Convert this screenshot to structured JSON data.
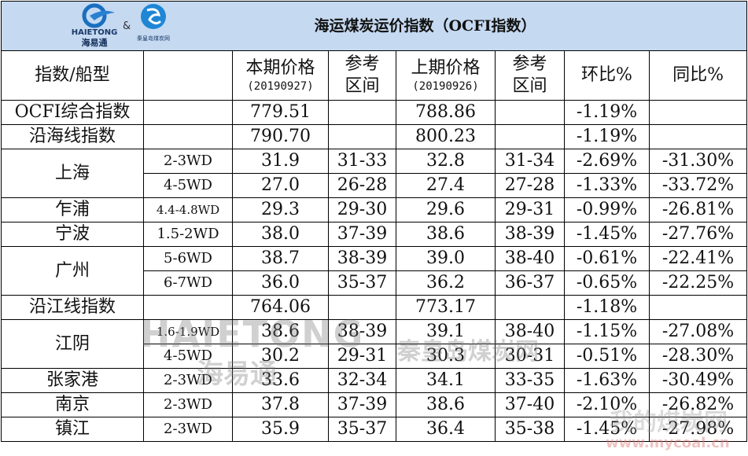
{
  "logos": {
    "left": "HAIETONG",
    "left_sub": "海易通",
    "amp": "&",
    "right_sub": "秦皇岛煤炭网"
  },
  "title": "海运煤炭运价指数（OCFI指数）",
  "headers": {
    "index": "指数/船型",
    "cur": "本期价格",
    "cur_date": "(20190927)",
    "ref1": "参考区间",
    "prev": "上期价格",
    "prev_date": "(20190926)",
    "ref2": "参考区间",
    "mom": "环比%",
    "yoy": "同比%"
  },
  "rows": [
    {
      "name": "OCFI综合指数",
      "ship": "",
      "cur": "779.51",
      "ref1": "",
      "prev": "788.86",
      "ref2": "",
      "mom": "-1.19%",
      "yoy": ""
    },
    {
      "name": "沿海线指数",
      "ship": "",
      "cur": "790.70",
      "ref1": "",
      "prev": "800.23",
      "ref2": "",
      "mom": "-1.19%",
      "yoy": ""
    },
    {
      "name": "上海",
      "ship": "2-3WD",
      "cur": "31.9",
      "ref1": "31-33",
      "prev": "32.8",
      "ref2": "31-34",
      "mom": "-2.69%",
      "yoy": "-31.30%"
    },
    {
      "name": "",
      "ship": "4-5WD",
      "cur": "27.0",
      "ref1": "26-28",
      "prev": "27.4",
      "ref2": "27-28",
      "mom": "-1.33%",
      "yoy": "-33.72%"
    },
    {
      "name": "乍浦",
      "ship": "4.4-4.8WD",
      "cur": "29.3",
      "ref1": "29-30",
      "prev": "29.6",
      "ref2": "29-31",
      "mom": "-0.99%",
      "yoy": "-26.81%"
    },
    {
      "name": "宁波",
      "ship": "1.5-2WD",
      "cur": "38.0",
      "ref1": "37-39",
      "prev": "38.6",
      "ref2": "38-39",
      "mom": "-1.45%",
      "yoy": "-27.76%"
    },
    {
      "name": "广州",
      "ship": "5-6WD",
      "cur": "38.7",
      "ref1": "38-39",
      "prev": "39.0",
      "ref2": "38-40",
      "mom": "-0.61%",
      "yoy": "-22.41%"
    },
    {
      "name": "",
      "ship": "6-7WD",
      "cur": "36.0",
      "ref1": "35-37",
      "prev": "36.2",
      "ref2": "36-37",
      "mom": "-0.65%",
      "yoy": "-22.25%"
    },
    {
      "name": "沿江线指数",
      "ship": "",
      "cur": "764.06",
      "ref1": "",
      "prev": "773.17",
      "ref2": "",
      "mom": "-1.18%",
      "yoy": ""
    },
    {
      "name": "江阴",
      "ship": "1.6-1.9WD",
      "cur": "38.6",
      "ref1": "38-39",
      "prev": "39.1",
      "ref2": "38-40",
      "mom": "-1.15%",
      "yoy": "-27.08%"
    },
    {
      "name": "",
      "ship": "4-5WD",
      "cur": "30.2",
      "ref1": "29-31",
      "prev": "30.3",
      "ref2": "30-31",
      "mom": "-0.51%",
      "yoy": "-28.30%"
    },
    {
      "name": "张家港",
      "ship": "2-3WD",
      "cur": "33.6",
      "ref1": "32-34",
      "prev": "34.1",
      "ref2": "33-35",
      "mom": "-1.63%",
      "yoy": "-30.49%"
    },
    {
      "name": "南京",
      "ship": "2-3WD",
      "cur": "37.8",
      "ref1": "37-39",
      "prev": "38.6",
      "ref2": "37-40",
      "mom": "-2.10%",
      "yoy": "-26.82%"
    },
    {
      "name": "镇江",
      "ship": "2-3WD",
      "cur": "35.9",
      "ref1": "35-37",
      "prev": "36.4",
      "ref2": "35-38",
      "mom": "-1.45%",
      "yoy": "-27.98%"
    }
  ],
  "watermarks": {
    "a": "HAIETONG",
    "b": "海易通",
    "c": "秦皇岛煤炭网",
    "d": "我的煤炭网",
    "e": "www.mycoal.cn"
  }
}
